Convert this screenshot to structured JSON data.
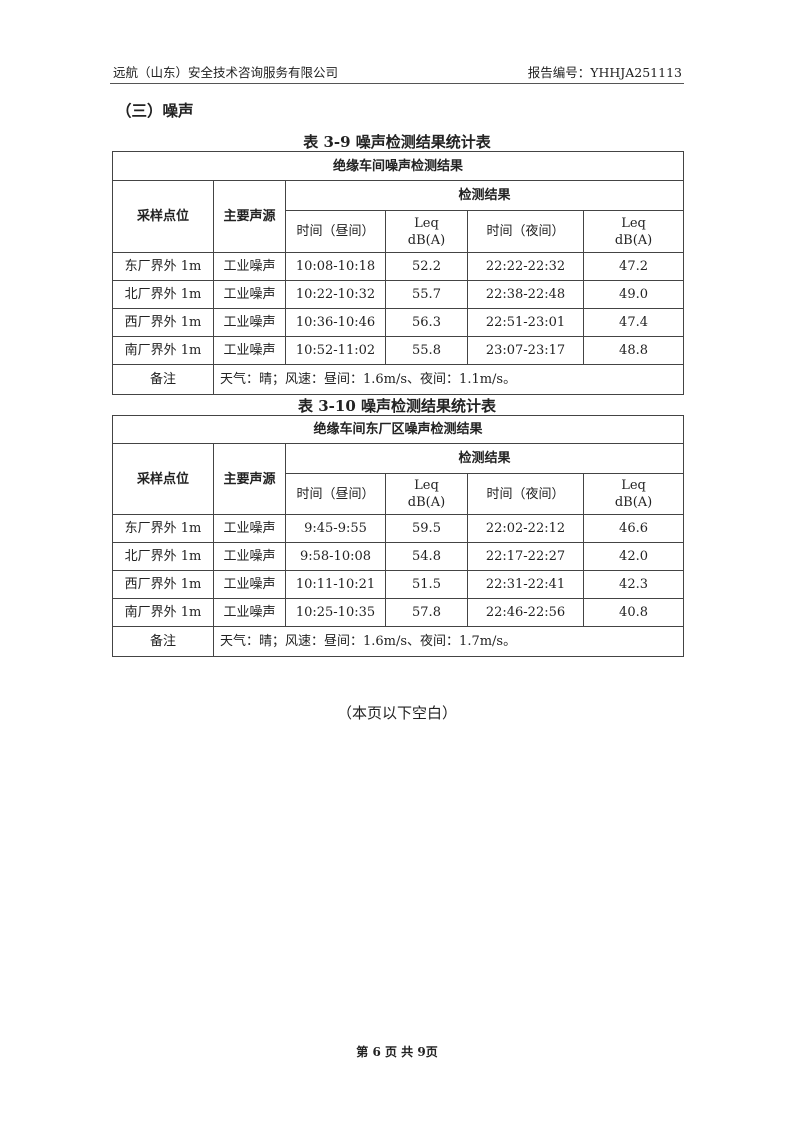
{
  "header": {
    "company": "远航（山东）安全技术咨询服务有限公司",
    "report_no": "报告编号：YHHJA251113"
  },
  "section_title": "（三）噪声",
  "tables": [
    {
      "caption": "表 3-9 噪声检测结果统计表",
      "title": "绝缘车间噪声检测结果",
      "col_point": "采样点位",
      "col_source": "主要声源",
      "col_result": "检测结果",
      "col_day_time": "时间（昼间）",
      "col_leq_day": "Leq\ndB(A)",
      "col_night_time": "时间（夜间）",
      "col_leq_night": "Leq\ndB(A)",
      "rows": [
        {
          "point": "东厂界外 1m",
          "source": "工业噪声",
          "day_time": "10:08-10:18",
          "day_leq": "52.2",
          "night_time": "22:22-22:32",
          "night_leq": "47.2"
        },
        {
          "point": "北厂界外 1m",
          "source": "工业噪声",
          "day_time": "10:22-10:32",
          "day_leq": "55.7",
          "night_time": "22:38-22:48",
          "night_leq": "49.0"
        },
        {
          "point": "西厂界外 1m",
          "source": "工业噪声",
          "day_time": "10:36-10:46",
          "day_leq": "56.3",
          "night_time": "22:51-23:01",
          "night_leq": "47.4"
        },
        {
          "point": "南厂界外 1m",
          "source": "工业噪声",
          "day_time": "10:52-11:02",
          "day_leq": "55.8",
          "night_time": "23:07-23:17",
          "night_leq": "48.8"
        }
      ],
      "note_label": "备注",
      "note": "天气：晴；风速：昼间：1.6m/s、夜间：1.1m/s。"
    },
    {
      "caption": "表 3-10 噪声检测结果统计表",
      "title": "绝缘车间东厂区噪声检测结果",
      "col_point": "采样点位",
      "col_source": "主要声源",
      "col_result": "检测结果",
      "col_day_time": "时间（昼间）",
      "col_leq_day": "Leq\ndB(A)",
      "col_night_time": "时间（夜间）",
      "col_leq_night": "Leq\ndB(A)",
      "rows": [
        {
          "point": "东厂界外 1m",
          "source": "工业噪声",
          "day_time": "9:45-9:55",
          "day_leq": "59.5",
          "night_time": "22:02-22:12",
          "night_leq": "46.6"
        },
        {
          "point": "北厂界外 1m",
          "source": "工业噪声",
          "day_time": "9:58-10:08",
          "day_leq": "54.8",
          "night_time": "22:17-22:27",
          "night_leq": "42.0"
        },
        {
          "point": "西厂界外 1m",
          "source": "工业噪声",
          "day_time": "10:11-10:21",
          "day_leq": "51.5",
          "night_time": "22:31-22:41",
          "night_leq": "42.3"
        },
        {
          "point": "南厂界外 1m",
          "source": "工业噪声",
          "day_time": "10:25-10:35",
          "day_leq": "57.8",
          "night_time": "22:46-22:56",
          "night_leq": "40.8"
        }
      ],
      "note_label": "备注",
      "note": "天气：晴；风速：昼间：1.6m/s、夜间：1.7m/s。"
    }
  ],
  "end_note": "（本页以下空白）",
  "footer": "第 6 页 共 9页"
}
